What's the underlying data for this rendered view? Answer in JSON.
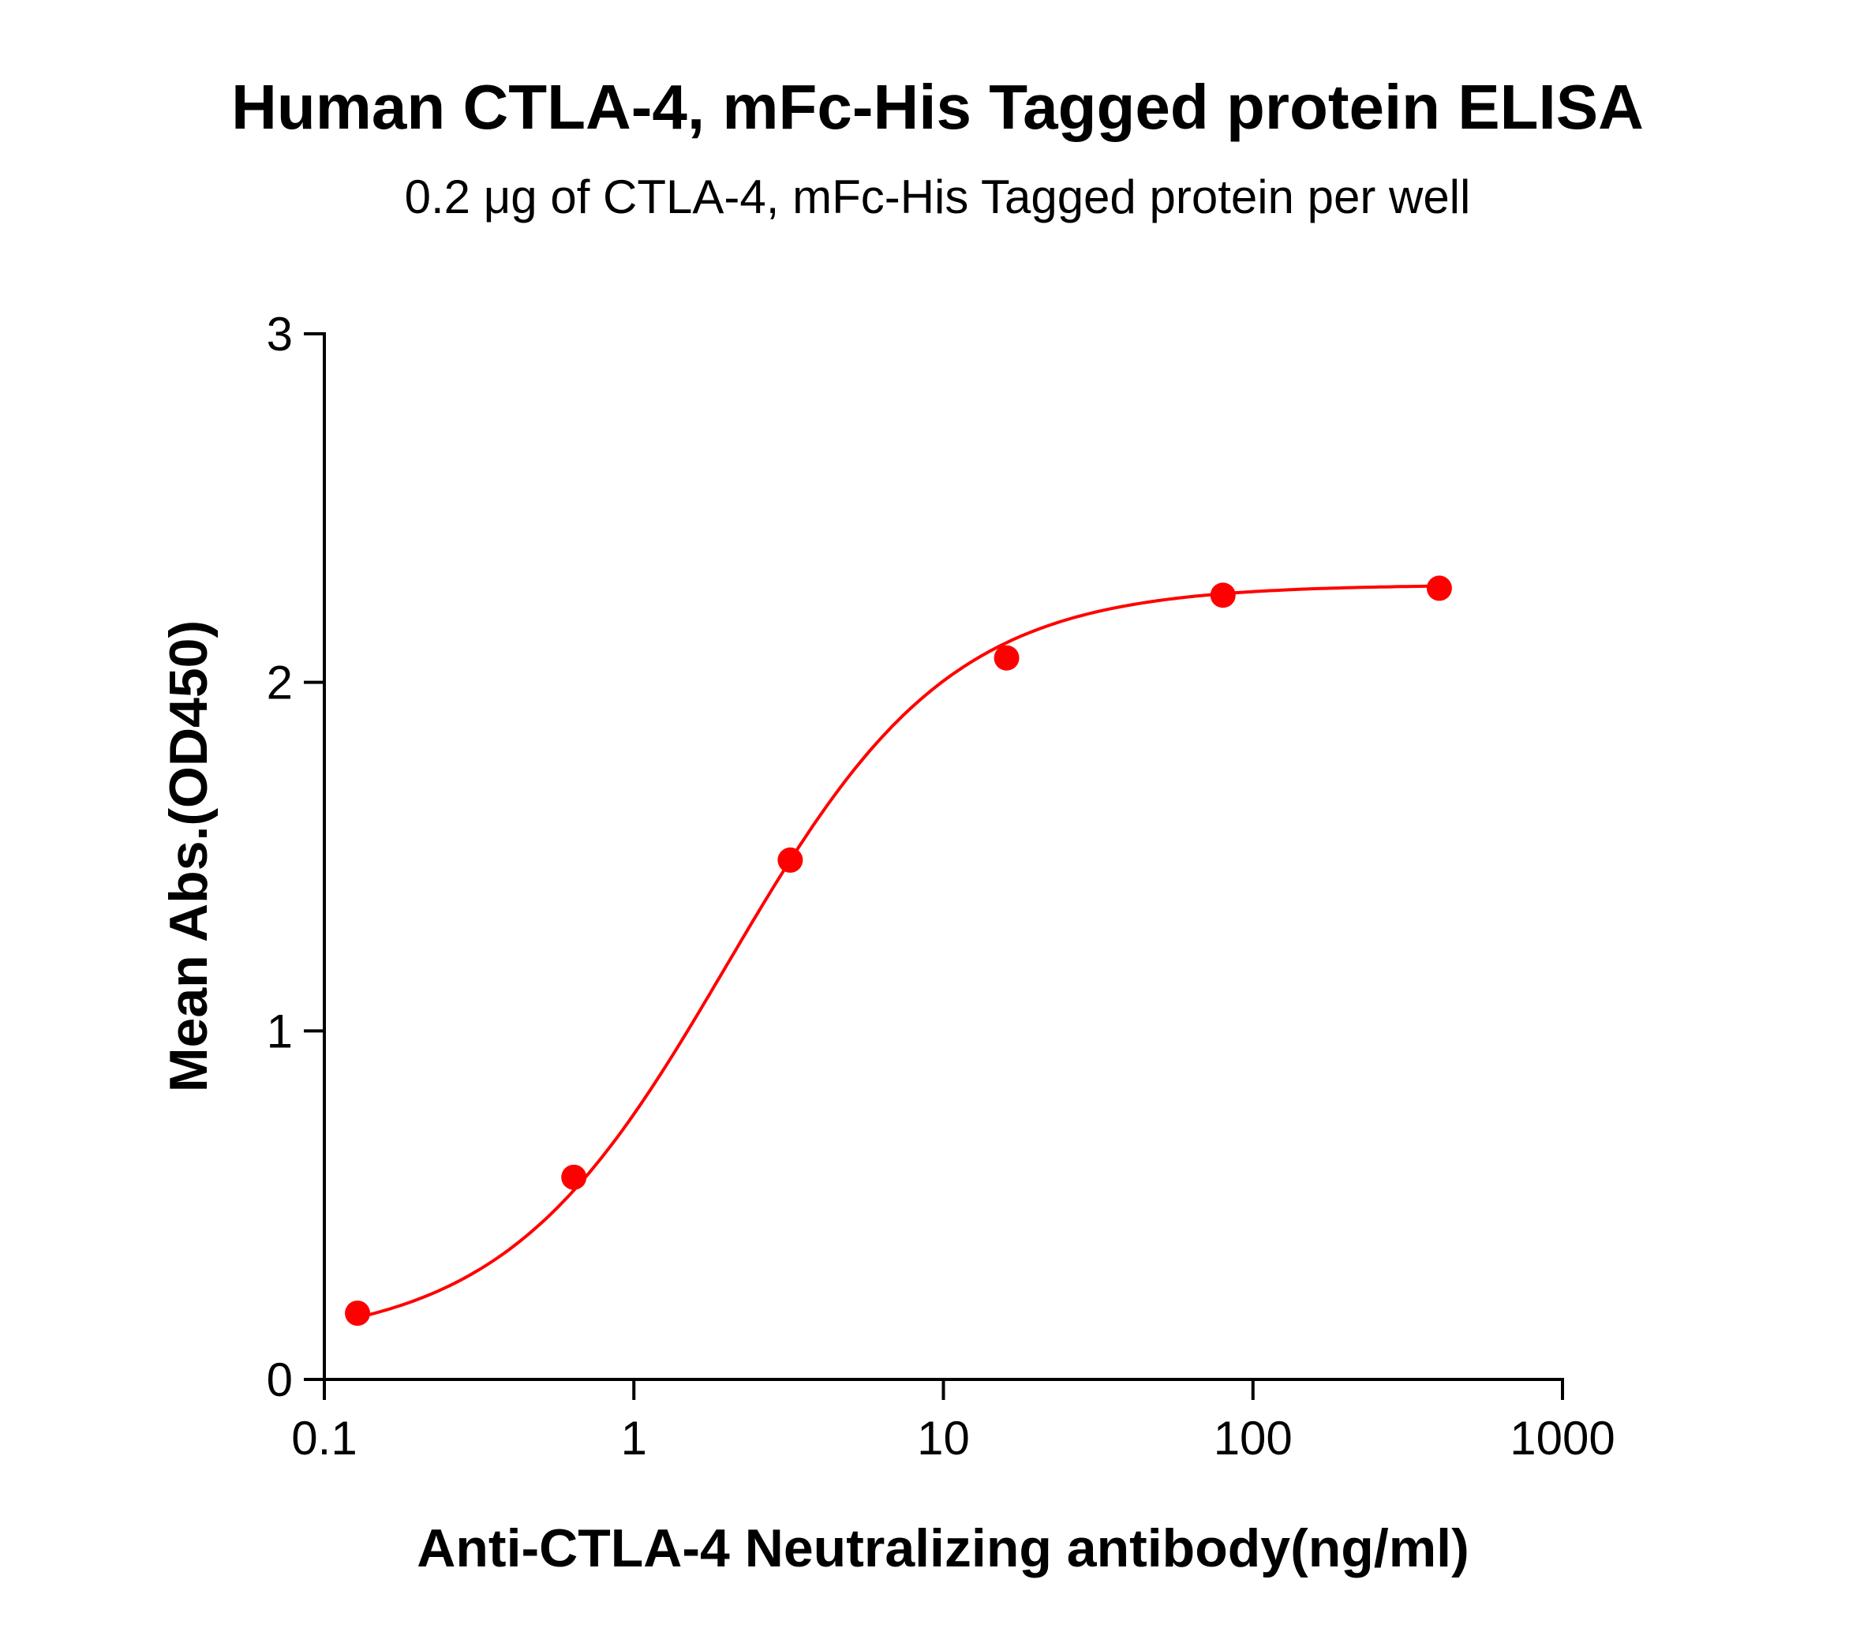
{
  "chart_data": {
    "type": "scatter",
    "title": "Human CTLA-4, mFc-His Tagged protein ELISA",
    "subtitle": "0.2 μg of CTLA-4, mFc-His Tagged protein per well",
    "xlabel": "Anti-CTLA-4 Neutralizing antibody(ng/ml)",
    "ylabel": "Mean Abs.(OD450)",
    "x_scale": "log",
    "xlim": [
      0.1,
      1000
    ],
    "ylim": [
      0,
      3
    ],
    "x_ticks": [
      "0.1",
      "1",
      "10",
      "100",
      "1000"
    ],
    "y_ticks": [
      "0",
      "1",
      "2",
      "3"
    ],
    "grid": false,
    "fit_curve": "sigmoidal",
    "series": [
      {
        "color": "#ff0000",
        "x": [
          0.128,
          0.64,
          3.2,
          16,
          80,
          400
        ],
        "y": [
          0.19,
          0.58,
          1.49,
          2.07,
          2.25,
          2.27
        ]
      }
    ]
  }
}
